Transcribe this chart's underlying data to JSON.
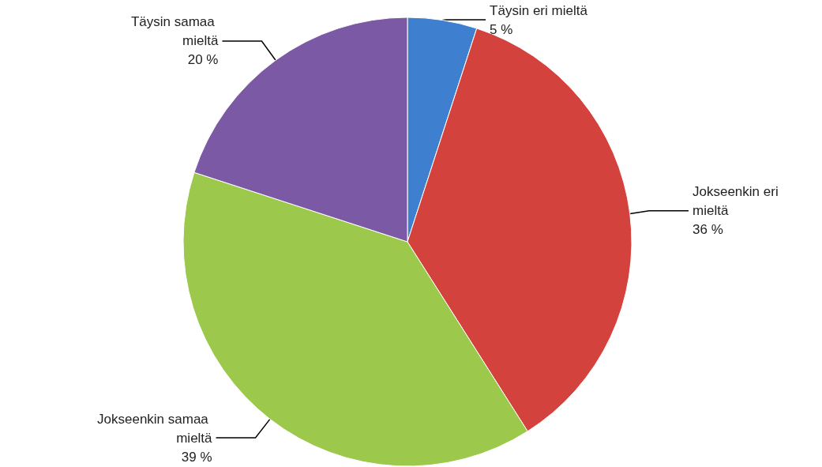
{
  "chart_data": {
    "type": "pie",
    "categories": [
      "Täysin eri mieltä",
      "Jokseenkin eri mieltä",
      "Jokseenkin samaa mieltä",
      "Täysin samaa mieltä"
    ],
    "values": [
      5,
      36,
      39,
      20
    ],
    "value_labels": [
      "5 %",
      "36 %",
      "39 %",
      "20 %"
    ],
    "colors": [
      "#3f7fcf",
      "#d4423d",
      "#9cc84b",
      "#7c59a5"
    ],
    "legend": false
  }
}
